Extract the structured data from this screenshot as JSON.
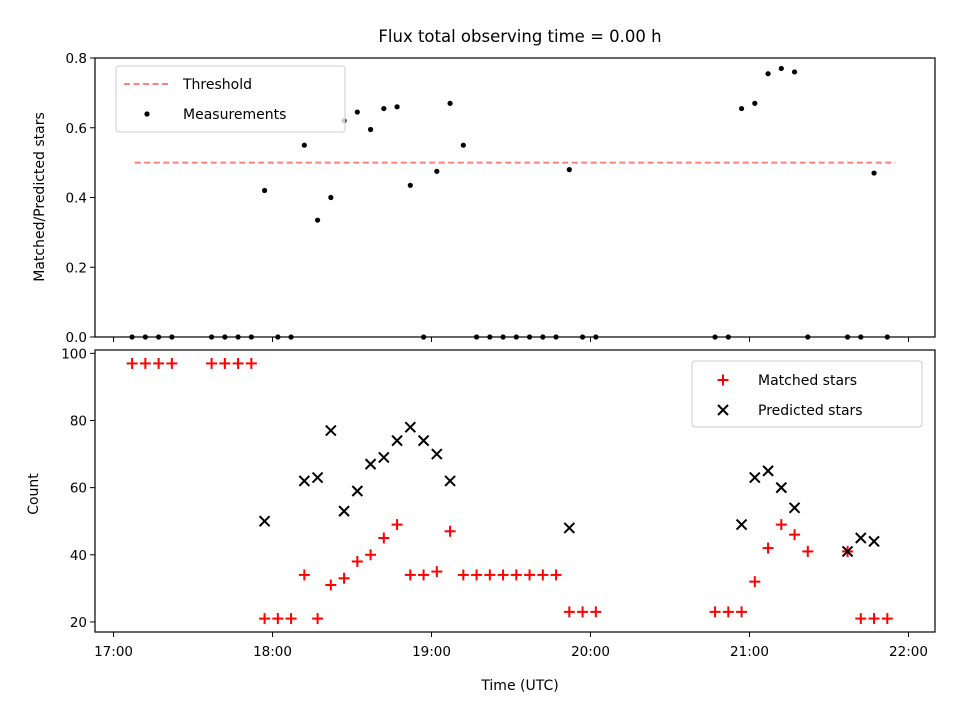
{
  "figure": {
    "title": "Flux total observing time = 0.00 h",
    "xlabel": "Time (UTC)",
    "top_ylabel": "Matched/Predicted stars",
    "bottom_ylabel": "Count",
    "x_tick_labels": [
      "17:00",
      "18:00",
      "19:00",
      "20:00",
      "21:00",
      "22:00"
    ]
  },
  "colors": {
    "threshold": "#ff7f7f",
    "measurements": "#000000",
    "matched": "#ff0000",
    "predicted": "#000000"
  },
  "chart_data": [
    {
      "type": "scatter",
      "title": "Flux total observing time = 0.00 h",
      "xlabel": "",
      "ylabel": "Matched/Predicted stars",
      "xlim": [
        "16:53",
        "22:10"
      ],
      "ylim": [
        0,
        0.8
      ],
      "yticks": [
        0.0,
        0.2,
        0.4,
        0.6,
        0.8
      ],
      "ytick_labels": [
        "0.0",
        "0.2",
        "0.4",
        "0.6",
        "0.8"
      ],
      "legend_position": "upper left",
      "threshold": {
        "name": "Threshold",
        "y": 0.5,
        "x_start": "17:08",
        "x_end": "21:55",
        "style": "dashed"
      },
      "series": [
        {
          "name": "Measurements",
          "x": [
            "17:07",
            "17:12",
            "17:17",
            "17:22",
            "17:37",
            "17:42",
            "17:47",
            "17:52",
            "17:57",
            "18:02",
            "18:07",
            "18:12",
            "18:17",
            "18:22",
            "18:27",
            "18:32",
            "18:37",
            "18:42",
            "18:47",
            "18:52",
            "18:57",
            "19:02",
            "19:07",
            "19:12",
            "19:17",
            "19:22",
            "19:27",
            "19:32",
            "19:37",
            "19:42",
            "19:47",
            "19:52",
            "19:57",
            "20:02",
            "20:47",
            "20:52",
            "20:57",
            "21:02",
            "21:07",
            "21:12",
            "21:17",
            "21:22",
            "21:37",
            "21:42",
            "21:47",
            "21:52"
          ],
          "y": [
            0,
            0,
            0,
            0,
            0,
            0,
            0,
            0,
            0.42,
            0,
            0,
            0.55,
            0.335,
            0.4,
            0.62,
            0.645,
            0.595,
            0.655,
            0.66,
            0.435,
            0,
            0.475,
            0.67,
            0.55,
            0,
            0,
            0,
            0,
            0,
            0,
            0,
            0.48,
            0,
            0,
            0,
            0,
            0.655,
            0.67,
            0.755,
            0.77,
            0.76,
            0,
            0,
            0,
            0.47,
            0
          ]
        }
      ]
    },
    {
      "type": "scatter",
      "xlabel": "Time (UTC)",
      "ylabel": "Count",
      "xlim": [
        "16:53",
        "22:10"
      ],
      "ylim": [
        17,
        101
      ],
      "yticks": [
        20,
        40,
        60,
        80,
        100
      ],
      "ytick_labels": [
        "20",
        "40",
        "60",
        "80",
        "100"
      ],
      "legend_position": "upper right",
      "series": [
        {
          "name": "Matched stars",
          "marker": "+",
          "x": [
            "17:07",
            "17:12",
            "17:17",
            "17:22",
            "17:37",
            "17:42",
            "17:47",
            "17:52",
            "17:57",
            "18:02",
            "18:07",
            "18:12",
            "18:17",
            "18:22",
            "18:27",
            "18:32",
            "18:37",
            "18:42",
            "18:47",
            "18:52",
            "18:57",
            "19:02",
            "19:07",
            "19:12",
            "19:17",
            "19:22",
            "19:27",
            "19:32",
            "19:37",
            "19:42",
            "19:47",
            "19:52",
            "19:57",
            "20:02",
            "20:47",
            "20:52",
            "20:57",
            "21:02",
            "21:07",
            "21:12",
            "21:17",
            "21:22",
            "21:37",
            "21:42",
            "21:47",
            "21:52"
          ],
          "y": [
            97,
            97,
            97,
            97,
            97,
            97,
            97,
            97,
            21,
            21,
            21,
            34,
            21,
            31,
            33,
            38,
            40,
            45,
            49,
            34,
            34,
            35,
            47,
            34,
            34,
            34,
            34,
            34,
            34,
            34,
            34,
            23,
            23,
            23,
            23,
            23,
            23,
            32,
            42,
            49,
            46,
            41,
            41,
            21,
            21,
            21
          ]
        },
        {
          "name": "Predicted stars",
          "marker": "x",
          "x": [
            "17:57",
            "18:12",
            "18:17",
            "18:22",
            "18:27",
            "18:32",
            "18:37",
            "18:42",
            "18:47",
            "18:52",
            "18:57",
            "19:02",
            "19:07",
            "19:52",
            "20:57",
            "21:02",
            "21:07",
            "21:12",
            "21:17",
            "21:37",
            "21:42",
            "21:47"
          ],
          "y": [
            50,
            62,
            63,
            77,
            53,
            59,
            67,
            69,
            74,
            78,
            74,
            70,
            62,
            48,
            49,
            63,
            65,
            60,
            54,
            41,
            45,
            44
          ]
        }
      ]
    }
  ]
}
